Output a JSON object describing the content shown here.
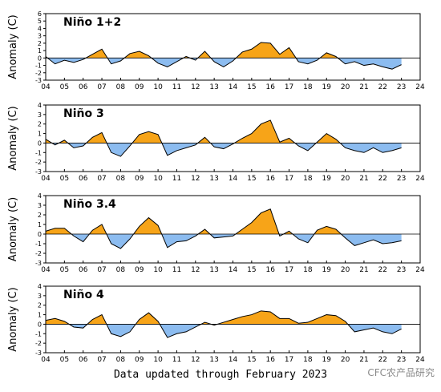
{
  "chart_data": [
    {
      "type": "area",
      "title": "Niño 1+2",
      "ylabel": "Anomaly (C)",
      "xlim": [
        2004,
        2024
      ],
      "ylim": [
        -3,
        6
      ],
      "yticks": [
        -3,
        -2,
        -1,
        0,
        1,
        2,
        3,
        4,
        5,
        6
      ],
      "xticks": [
        "04",
        "05",
        "06",
        "07",
        "08",
        "09",
        "10",
        "11",
        "12",
        "13",
        "14",
        "15",
        "16",
        "17",
        "18",
        "19",
        "20",
        "21",
        "22",
        "23",
        "24"
      ],
      "series": [
        {
          "x": [
            2004.0,
            2004.5,
            2005.0,
            2005.5,
            2006.0,
            2006.5,
            2007.0,
            2007.5,
            2008.0,
            2008.5,
            2009.0,
            2009.5,
            2010.0,
            2010.5,
            2011.0,
            2011.5,
            2012.0,
            2012.5,
            2013.0,
            2013.5,
            2014.0,
            2014.5,
            2015.0,
            2015.5,
            2016.0,
            2016.5,
            2017.0,
            2017.5,
            2018.0,
            2018.5,
            2019.0,
            2019.5,
            2020.0,
            2020.5,
            2021.0,
            2021.5,
            2022.0,
            2022.5,
            2023.0
          ],
          "y": [
            0.2,
            -0.8,
            -0.3,
            -0.6,
            -0.2,
            0.5,
            1.2,
            -0.8,
            -0.4,
            0.6,
            0.9,
            0.3,
            -0.7,
            -1.2,
            -0.5,
            0.2,
            -0.3,
            0.9,
            -0.5,
            -1.2,
            -0.4,
            0.8,
            1.2,
            2.1,
            2.0,
            0.5,
            1.4,
            -0.5,
            -0.8,
            -0.3,
            0.7,
            0.2,
            -0.8,
            -0.5,
            -1.0,
            -0.8,
            -1.2,
            -1.5,
            -0.9
          ]
        }
      ]
    },
    {
      "type": "area",
      "title": "Niño 3",
      "ylabel": "Anomaly (C)",
      "xlim": [
        2004,
        2024
      ],
      "ylim": [
        -3,
        4
      ],
      "yticks": [
        -3,
        -2,
        -1,
        0,
        1,
        2,
        3,
        4
      ],
      "xticks": [
        "04",
        "05",
        "06",
        "07",
        "08",
        "09",
        "10",
        "11",
        "12",
        "13",
        "14",
        "15",
        "16",
        "17",
        "18",
        "19",
        "20",
        "21",
        "22",
        "23",
        "24"
      ],
      "series": [
        {
          "x": [
            2004.0,
            2004.5,
            2005.0,
            2005.5,
            2006.0,
            2006.5,
            2007.0,
            2007.5,
            2008.0,
            2008.5,
            2009.0,
            2009.5,
            2010.0,
            2010.5,
            2011.0,
            2011.5,
            2012.0,
            2012.5,
            2013.0,
            2013.5,
            2014.0,
            2014.5,
            2015.0,
            2015.5,
            2016.0,
            2016.5,
            2017.0,
            2017.5,
            2018.0,
            2018.5,
            2019.0,
            2019.5,
            2020.0,
            2020.5,
            2021.0,
            2021.5,
            2022.0,
            2022.5,
            2023.0
          ],
          "y": [
            0.4,
            -0.2,
            0.3,
            -0.5,
            -0.3,
            0.6,
            1.1,
            -1.0,
            -1.4,
            -0.3,
            0.9,
            1.2,
            0.9,
            -1.3,
            -0.8,
            -0.5,
            -0.2,
            0.6,
            -0.4,
            -0.6,
            -0.1,
            0.5,
            1.0,
            2.0,
            2.4,
            0.1,
            0.5,
            -0.3,
            -0.8,
            0.1,
            1.0,
            0.4,
            -0.5,
            -0.8,
            -1.0,
            -0.5,
            -1.0,
            -0.8,
            -0.5
          ]
        }
      ]
    },
    {
      "type": "area",
      "title": "Niño 3.4",
      "ylabel": "Anomaly (C)",
      "xlim": [
        2004,
        2024
      ],
      "ylim": [
        -3,
        4
      ],
      "yticks": [
        -3,
        -2,
        -1,
        0,
        1,
        2,
        3,
        4
      ],
      "xticks": [
        "04",
        "05",
        "06",
        "07",
        "08",
        "09",
        "10",
        "11",
        "12",
        "13",
        "14",
        "15",
        "16",
        "17",
        "18",
        "19",
        "20",
        "21",
        "22",
        "23",
        "24"
      ],
      "series": [
        {
          "x": [
            2004.0,
            2004.5,
            2005.0,
            2005.5,
            2006.0,
            2006.5,
            2007.0,
            2007.5,
            2008.0,
            2008.5,
            2009.0,
            2009.5,
            2010.0,
            2010.5,
            2011.0,
            2011.5,
            2012.0,
            2012.5,
            2013.0,
            2013.5,
            2014.0,
            2014.5,
            2015.0,
            2015.5,
            2016.0,
            2016.5,
            2017.0,
            2017.5,
            2018.0,
            2018.5,
            2019.0,
            2019.5,
            2020.0,
            2020.5,
            2021.0,
            2021.5,
            2022.0,
            2022.5,
            2023.0
          ],
          "y": [
            0.3,
            0.6,
            0.6,
            -0.2,
            -0.8,
            0.4,
            1.0,
            -1.0,
            -1.5,
            -0.5,
            0.8,
            1.7,
            0.9,
            -1.4,
            -0.8,
            -0.7,
            -0.2,
            0.5,
            -0.4,
            -0.3,
            -0.2,
            0.5,
            1.2,
            2.2,
            2.6,
            -0.2,
            0.3,
            -0.5,
            -0.9,
            0.4,
            0.8,
            0.5,
            -0.4,
            -1.2,
            -0.9,
            -0.6,
            -1.0,
            -0.9,
            -0.7
          ]
        }
      ]
    },
    {
      "type": "area",
      "title": "Niño 4",
      "ylabel": "Anomaly (C)",
      "xlim": [
        2004,
        2024
      ],
      "ylim": [
        -3,
        4
      ],
      "yticks": [
        -3,
        -2,
        -1,
        0,
        1,
        2,
        3,
        4
      ],
      "xticks": [
        "04",
        "05",
        "06",
        "07",
        "08",
        "09",
        "10",
        "11",
        "12",
        "13",
        "14",
        "15",
        "16",
        "17",
        "18",
        "19",
        "20",
        "21",
        "22",
        "23",
        "24"
      ],
      "series": [
        {
          "x": [
            2004.0,
            2004.5,
            2005.0,
            2005.5,
            2006.0,
            2006.5,
            2007.0,
            2007.5,
            2008.0,
            2008.5,
            2009.0,
            2009.5,
            2010.0,
            2010.5,
            2011.0,
            2011.5,
            2012.0,
            2012.5,
            2013.0,
            2013.5,
            2014.0,
            2014.5,
            2015.0,
            2015.5,
            2016.0,
            2016.5,
            2017.0,
            2017.5,
            2018.0,
            2018.5,
            2019.0,
            2019.5,
            2020.0,
            2020.5,
            2021.0,
            2021.5,
            2022.0,
            2022.5,
            2023.0
          ],
          "y": [
            0.4,
            0.6,
            0.3,
            -0.3,
            -0.4,
            0.5,
            1.0,
            -1.0,
            -1.3,
            -0.8,
            0.5,
            1.2,
            0.3,
            -1.4,
            -1.0,
            -0.8,
            -0.3,
            0.2,
            -0.1,
            0.2,
            0.5,
            0.8,
            1.0,
            1.4,
            1.3,
            0.6,
            0.6,
            0.1,
            0.2,
            0.6,
            1.0,
            0.9,
            0.3,
            -0.8,
            -0.6,
            -0.4,
            -0.8,
            -1.0,
            -0.5
          ]
        }
      ]
    }
  ],
  "colors": {
    "positive": "#f7a418",
    "negative": "#8cbcf0",
    "line": "#000000"
  },
  "footer": "Data updated through February 2023",
  "watermark": "CFC农产品研究"
}
